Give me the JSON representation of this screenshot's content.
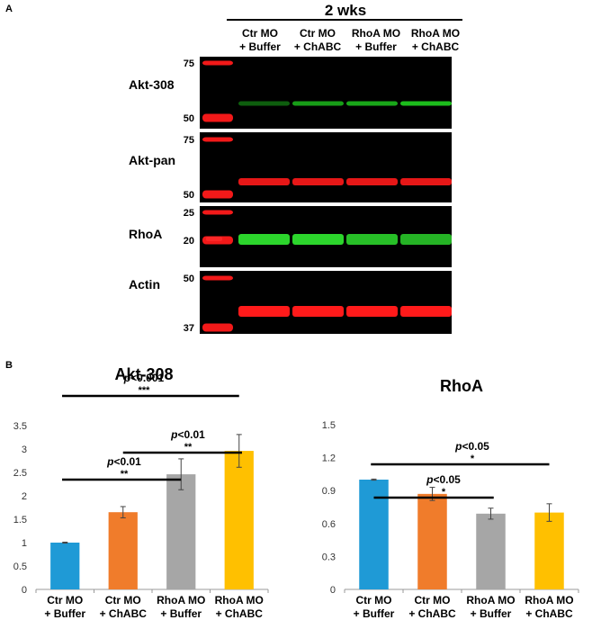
{
  "panel_a": {
    "label": "A",
    "time_header": "2 wks",
    "lanes": [
      {
        "line1": "Ctr MO",
        "line2": "+ Buffer"
      },
      {
        "line1": "Ctr MO",
        "line2": "+ ChABC"
      },
      {
        "line1": "RhoA  MO",
        "line2": "+ Buffer"
      },
      {
        "line1": "RhoA  MO",
        "line2": "+ ChABC"
      }
    ],
    "blots": [
      {
        "name": "Akt-308",
        "marker_top": "75",
        "marker_bottom": "50",
        "band_color": "#1fd11f",
        "band_intensity": [
          0.45,
          0.75,
          0.8,
          0.9
        ]
      },
      {
        "name": "Akt-pan",
        "marker_top": "75",
        "marker_bottom": "50",
        "band_color": "#ff1a1a",
        "band_intensity": [
          0.9,
          0.9,
          0.9,
          0.9
        ]
      },
      {
        "name": "RhoA",
        "marker_top": "25",
        "marker_bottom": "20",
        "band_color": "#2ee02e",
        "band_intensity": [
          0.95,
          0.95,
          0.85,
          0.8
        ]
      },
      {
        "name": "Actin",
        "marker_top": "50",
        "marker_bottom": "37",
        "band_color": "#ff1a1a",
        "band_intensity": [
          1,
          1,
          1,
          1
        ]
      }
    ]
  },
  "chart_data": [
    {
      "type": "bar",
      "panel_label": "B",
      "title": "Akt-308",
      "categories": [
        {
          "line1": "Ctr MO",
          "line2": "+ Buffer"
        },
        {
          "line1": "Ctr MO",
          "line2": "+ ChABC"
        },
        {
          "line1": "RhoA  MO",
          "line2": "+ Buffer"
        },
        {
          "line1": "RhoA  MO",
          "line2": "+ ChABC"
        }
      ],
      "values": [
        1.0,
        1.65,
        2.46,
        2.96
      ],
      "errors": [
        0.01,
        0.12,
        0.33,
        0.35
      ],
      "colors": [
        "#1f9ad6",
        "#f07c2b",
        "#a6a6a6",
        "#ffc000"
      ],
      "ylim": [
        0,
        3.5
      ],
      "yticks": [
        "0",
        "0.5",
        "1",
        "1.5",
        "2",
        "2.5",
        "3",
        "3.5"
      ],
      "grid": false,
      "significance": [
        {
          "from": 0,
          "to": 3,
          "p": "p<0.001",
          "stars": "***"
        },
        {
          "from": 1,
          "to": 3,
          "p": "p<0.01",
          "stars": "**"
        },
        {
          "from": 0,
          "to": 2,
          "p": "p<0.01",
          "stars": "**"
        }
      ]
    },
    {
      "type": "bar",
      "title": "RhoA",
      "categories": [
        {
          "line1": "Ctr MO",
          "line2": "+ Buffer"
        },
        {
          "line1": "Ctr MO",
          "line2": "+ ChABC"
        },
        {
          "line1": "RhoA  MO",
          "line2": "+ Buffer"
        },
        {
          "line1": "RhoA  MO",
          "line2": "+ ChABC"
        }
      ],
      "values": [
        1.0,
        0.87,
        0.69,
        0.7
      ],
      "errors": [
        0.005,
        0.06,
        0.05,
        0.08
      ],
      "colors": [
        "#1f9ad6",
        "#f07c2b",
        "#a6a6a6",
        "#ffc000"
      ],
      "ylim": [
        0,
        1.5
      ],
      "yticks": [
        "0",
        "0.3",
        "0.6",
        "0.9",
        "1.2",
        "1.5"
      ],
      "grid": false,
      "significance": [
        {
          "from": 0,
          "to": 3,
          "p": "p<0.05",
          "stars": "*"
        },
        {
          "from": 0,
          "to": 2,
          "p": "p<0.05",
          "stars": "*"
        }
      ]
    }
  ]
}
